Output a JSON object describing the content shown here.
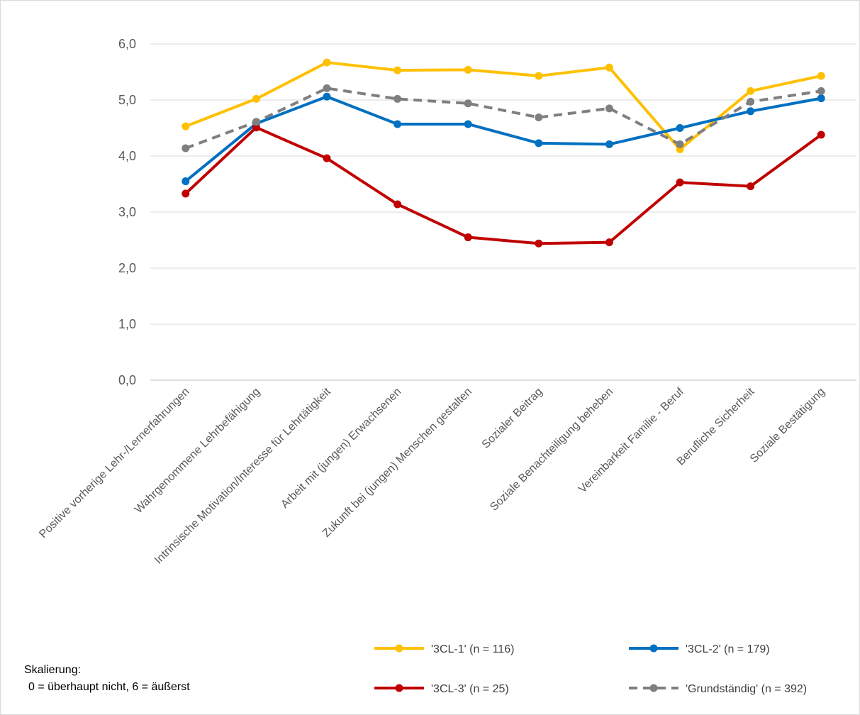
{
  "chart_data": {
    "type": "line",
    "categories": [
      "Positive vorherige Lehr-/Lernerfahrungen",
      "Wahrgenommene Lehrbefähigung",
      "Intrinsische Motivation/Interesse für Lehrtätigkeit",
      "Arbeit mit (jungen) Erwachsenen",
      "Zukunft bei (jungen) Menschen gestalten",
      "Sozialer Beitrag",
      "Soziale Benachteiligung beheben",
      "Vereinbarkeit Familie - Beruf",
      "Berufliche Sicherheit",
      "Soziale Bestätigung"
    ],
    "series": [
      {
        "name": "'3CL-1' (n = 116)",
        "color": "#FFC000",
        "dashed": false,
        "values": [
          4.53,
          5.02,
          5.67,
          5.53,
          5.54,
          5.43,
          5.58,
          4.12,
          5.16,
          5.43
        ]
      },
      {
        "name": "'3CL-2' (n = 179)",
        "color": "#0070C0",
        "dashed": false,
        "values": [
          3.55,
          4.58,
          5.06,
          4.57,
          4.57,
          4.23,
          4.21,
          4.5,
          4.8,
          5.03
        ]
      },
      {
        "name": "'3CL-3' (n = 25)",
        "color": "#C00000",
        "dashed": false,
        "values": [
          3.33,
          4.51,
          3.96,
          3.14,
          2.55,
          2.44,
          2.46,
          3.53,
          3.46,
          4.38
        ]
      },
      {
        "name": "'Grundständig' (n = 392)",
        "color": "#7F7F7F",
        "dashed": true,
        "values": [
          4.14,
          4.61,
          5.21,
          5.02,
          4.94,
          4.69,
          4.85,
          4.21,
          4.97,
          5.16
        ]
      }
    ],
    "yticks": [
      "0,0",
      "1,0",
      "2,0",
      "3,0",
      "4,0",
      "5,0",
      "6,0"
    ],
    "ylim": [
      0,
      6
    ],
    "grid": true,
    "legend_position": "bottom"
  },
  "note": {
    "line1": "Skalierung:",
    "line2": "0 = überhaupt nicht, 6 = äußerst"
  }
}
